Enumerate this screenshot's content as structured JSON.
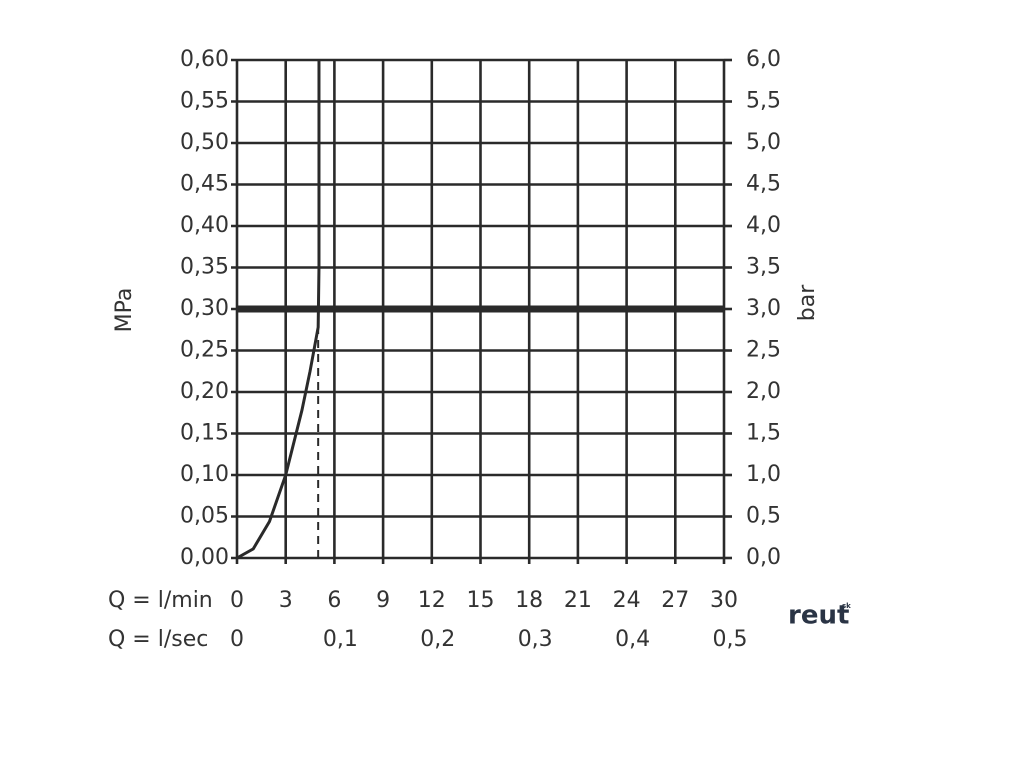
{
  "chart_data": {
    "type": "line",
    "ylabel": "MPa",
    "y2label": "bar",
    "xlabel": "Q = l/min",
    "x2label": "Q = l/sec",
    "watermark": "reut",
    "watermark_sup": "sk",
    "xlim": [
      0,
      30
    ],
    "xticks": [
      0,
      3,
      6,
      9,
      12,
      15,
      18,
      21,
      24,
      27,
      30
    ],
    "x2lim": [
      0,
      0.5
    ],
    "x2ticks": [
      0,
      {
        "value": 0.1,
        "label": "0,1"
      },
      {
        "value": 0.2,
        "label": "0,2"
      },
      {
        "value": 0.3,
        "label": "0,3"
      },
      {
        "value": 0.4,
        "label": "0,4"
      },
      {
        "value": 0.5,
        "label": "0,5"
      }
    ],
    "ylim": [
      0,
      0.6
    ],
    "yticks": [
      {
        "value": 0,
        "label": "0,00"
      },
      {
        "value": 0.05,
        "label": "0,05"
      },
      {
        "value": 0.1,
        "label": "0,10"
      },
      {
        "value": 0.15,
        "label": "0,15"
      },
      {
        "value": 0.2,
        "label": "0,20"
      },
      {
        "value": 0.25,
        "label": "0,25"
      },
      {
        "value": 0.3,
        "label": "0,30"
      },
      {
        "value": 0.35,
        "label": "0,35"
      },
      {
        "value": 0.4,
        "label": "0,40"
      },
      {
        "value": 0.45,
        "label": "0,45"
      },
      {
        "value": 0.5,
        "label": "0,50"
      },
      {
        "value": 0.55,
        "label": "0,55"
      },
      {
        "value": 0.6,
        "label": "0,60"
      }
    ],
    "y2lim": [
      0,
      6
    ],
    "y2ticks": [
      {
        "value": 0,
        "label": "0,0"
      },
      {
        "value": 0.5,
        "label": "0,5"
      },
      {
        "value": 1,
        "label": "1,0"
      },
      {
        "value": 1.5,
        "label": "1,5"
      },
      {
        "value": 2,
        "label": "2,0"
      },
      {
        "value": 2.5,
        "label": "2,5"
      },
      {
        "value": 3,
        "label": "3,0"
      },
      {
        "value": 3.5,
        "label": "3,5"
      },
      {
        "value": 4,
        "label": "4,0"
      },
      {
        "value": 4.5,
        "label": "4,5"
      },
      {
        "value": 5,
        "label": "5,0"
      },
      {
        "value": 5.5,
        "label": "5,5"
      },
      {
        "value": 6,
        "label": "6,0"
      }
    ],
    "grid": true,
    "x": [
      0,
      1,
      2,
      3,
      4,
      4.5,
      5,
      5.05,
      5.05
    ],
    "series": [
      {
        "color": "#2a2a2a",
        "values": [
          0,
          0.011,
          0.044,
          0.1,
          0.178,
          0.225,
          0.278,
          0.35,
          0.6
        ]
      }
    ],
    "hline": {
      "value": 0.3,
      "color": "#2a2a2a"
    },
    "vline": {
      "x": 5,
      "top": 0.278,
      "color": "#2a2a2a"
    }
  }
}
